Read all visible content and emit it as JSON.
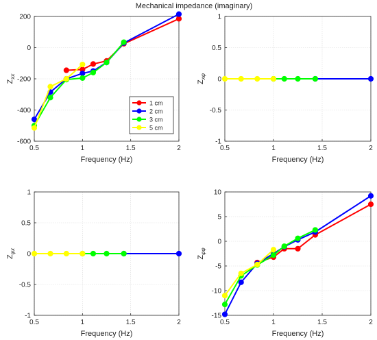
{
  "figure": {
    "title": "Mechanical impedance (imaginary)"
  },
  "legend": {
    "entries": [
      {
        "label": "1 cm",
        "color": "#ff0000"
      },
      {
        "label": "2 cm",
        "color": "#0000ff"
      },
      {
        "label": "3 cm",
        "color": "#00ff00"
      },
      {
        "label": "5 cm",
        "color": "#ffff00"
      }
    ]
  },
  "chart_data": [
    {
      "id": "zxx",
      "type": "line",
      "xlabel": "Frequency (Hz)",
      "ylabel_main": "Z",
      "ylabel_sub": "xx",
      "xlim": [
        0.5,
        2
      ],
      "ylim": [
        -600,
        200
      ],
      "xticks": [
        0.5,
        1,
        1.5,
        2
      ],
      "xtick_labels": [
        "0.5",
        "1",
        "1.5",
        "2"
      ],
      "yticks": [
        -600,
        -400,
        -200,
        0,
        200
      ],
      "ytick_labels": [
        "-600",
        "-400",
        "-200",
        "0",
        "200"
      ],
      "grid": true,
      "legend_position": "center-right",
      "series": [
        {
          "name": "1 cm",
          "color": "#ff0000",
          "x": [
            0.833,
            1.0,
            1.111,
            1.25,
            1.429,
            2.0
          ],
          "y": [
            -145,
            -140,
            -105,
            -85,
            25,
            185
          ]
        },
        {
          "name": "2 cm",
          "color": "#0000ff",
          "x": [
            0.5,
            0.667,
            0.833,
            1.0,
            1.111,
            1.25,
            1.429,
            2.0
          ],
          "y": [
            -460,
            -285,
            -200,
            -165,
            -150,
            -95,
            30,
            215
          ]
        },
        {
          "name": "3 cm",
          "color": "#00ff00",
          "x": [
            0.5,
            0.667,
            0.833,
            1.0,
            1.111,
            1.25,
            1.429
          ],
          "y": [
            -500,
            -320,
            -205,
            -195,
            -160,
            -95,
            35
          ]
        },
        {
          "name": "5 cm",
          "color": "#ffff00",
          "x": [
            0.5,
            0.667,
            0.833,
            1.0
          ],
          "y": [
            -515,
            -250,
            -200,
            -108
          ]
        }
      ]
    },
    {
      "id": "zxphi",
      "type": "line",
      "xlabel": "Frequency (Hz)",
      "ylabel_main": "Z",
      "ylabel_sub": "xφ",
      "xlim": [
        0.5,
        2
      ],
      "ylim": [
        -1,
        1
      ],
      "xticks": [
        0.5,
        1,
        1.5,
        2
      ],
      "xtick_labels": [
        "0.5",
        "1",
        "1.5",
        "2"
      ],
      "yticks": [
        -1,
        -0.5,
        0,
        0.5,
        1
      ],
      "ytick_labels": [
        "-1",
        "-0.5",
        "0",
        "0.5",
        "1"
      ],
      "grid": true,
      "series": [
        {
          "name": "2 cm",
          "color": "#0000ff",
          "x": [
            1.429,
            2.0
          ],
          "y": [
            0,
            0
          ]
        },
        {
          "name": "3 cm",
          "color": "#00ff00",
          "x": [
            1.0,
            1.111,
            1.25,
            1.429
          ],
          "y": [
            0,
            0,
            0,
            0
          ]
        },
        {
          "name": "5 cm",
          "color": "#ffff00",
          "x": [
            0.5,
            0.667,
            0.833,
            1.0
          ],
          "y": [
            0,
            0,
            0,
            0
          ]
        }
      ]
    },
    {
      "id": "zphix",
      "type": "line",
      "xlabel": "Frequency (Hz)",
      "ylabel_main": "Z",
      "ylabel_sub": "φx",
      "xlim": [
        0.5,
        2
      ],
      "ylim": [
        -1,
        1
      ],
      "xticks": [
        0.5,
        1,
        1.5,
        2
      ],
      "xtick_labels": [
        "0.5",
        "1",
        "1.5",
        "2"
      ],
      "yticks": [
        -1,
        -0.5,
        0,
        0.5,
        1
      ],
      "ytick_labels": [
        "-1",
        "-0.5",
        "0",
        "0.5",
        "1"
      ],
      "grid": true,
      "series": [
        {
          "name": "2 cm",
          "color": "#0000ff",
          "x": [
            1.429,
            2.0
          ],
          "y": [
            0,
            0
          ]
        },
        {
          "name": "3 cm",
          "color": "#00ff00",
          "x": [
            1.0,
            1.111,
            1.25,
            1.429
          ],
          "y": [
            0,
            0,
            0,
            0
          ]
        },
        {
          "name": "5 cm",
          "color": "#ffff00",
          "x": [
            0.5,
            0.667,
            0.833,
            1.0
          ],
          "y": [
            0,
            0,
            0,
            0
          ]
        }
      ]
    },
    {
      "id": "zphiphi",
      "type": "line",
      "xlabel": "Frequency (Hz)",
      "ylabel_main": "Z",
      "ylabel_sub": "φφ",
      "xlim": [
        0.5,
        2
      ],
      "ylim": [
        -15,
        10
      ],
      "xticks": [
        0.5,
        1,
        1.5,
        2
      ],
      "xtick_labels": [
        "0.5",
        "1",
        "1.5",
        "2"
      ],
      "yticks": [
        -15,
        -10,
        -5,
        0,
        5,
        10
      ],
      "ytick_labels": [
        "-15",
        "-10",
        "-5",
        "0",
        "5",
        "10"
      ],
      "grid": true,
      "series": [
        {
          "name": "1 cm",
          "color": "#ff0000",
          "x": [
            0.833,
            1.0,
            1.111,
            1.25,
            1.429,
            2.0
          ],
          "y": [
            -4.3,
            -3.2,
            -1.5,
            -1.5,
            1.3,
            7.5
          ]
        },
        {
          "name": "2 cm",
          "color": "#0000ff",
          "x": [
            0.5,
            0.667,
            0.833,
            1.0,
            1.111,
            1.25,
            1.429,
            2.0
          ],
          "y": [
            -14.8,
            -8.3,
            -4.5,
            -2.5,
            -1.1,
            0.3,
            1.9,
            9.2
          ]
        },
        {
          "name": "3 cm",
          "color": "#00ff00",
          "x": [
            0.5,
            0.667,
            0.833,
            1.0,
            1.111,
            1.25,
            1.429
          ],
          "y": [
            -12.8,
            -7.0,
            -4.8,
            -2.8,
            -1.0,
            0.6,
            2.3
          ]
        },
        {
          "name": "5 cm",
          "color": "#ffff00",
          "x": [
            0.5,
            0.667,
            0.833,
            1.0
          ],
          "y": [
            -11.0,
            -6.5,
            -4.7,
            -1.7
          ]
        }
      ]
    }
  ]
}
